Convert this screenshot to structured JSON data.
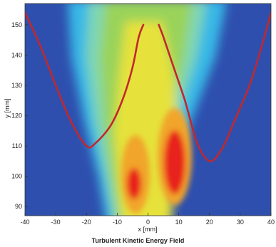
{
  "chart_data": {
    "type": "heatmap",
    "title": "",
    "caption": "Turbulent Kinetic Energy Field",
    "xlabel": "x [mm]",
    "ylabel": "y [mm]",
    "xlim": [
      -40,
      40
    ],
    "ylim": [
      87,
      157
    ],
    "x_ticks": [
      -40,
      -30,
      -20,
      -10,
      0,
      10,
      20,
      30,
      40
    ],
    "y_ticks": [
      90,
      100,
      110,
      120,
      130,
      140,
      150
    ],
    "grid": false,
    "colormap": [
      "#2e4fae",
      "#38b8e6",
      "#7fd6b3",
      "#9ad35a",
      "#e6e23a",
      "#f1a52a",
      "#e8231f"
    ],
    "overlay_curves": [
      {
        "color": "#c0282e",
        "x": [
          -40,
          -35,
          -30,
          -25,
          -20,
          -17,
          -12,
          -8,
          -5,
          -3,
          -1.5
        ],
        "y": [
          154,
          143,
          130,
          118,
          110,
          111,
          117,
          126,
          136,
          146,
          150
        ]
      },
      {
        "color": "#c0282e",
        "x": [
          3.5,
          5,
          8,
          12,
          16,
          20,
          24,
          28,
          33,
          37,
          40
        ],
        "y": [
          150,
          146,
          137,
          125,
          111,
          105,
          109,
          118,
          130,
          143,
          154
        ]
      }
    ]
  }
}
